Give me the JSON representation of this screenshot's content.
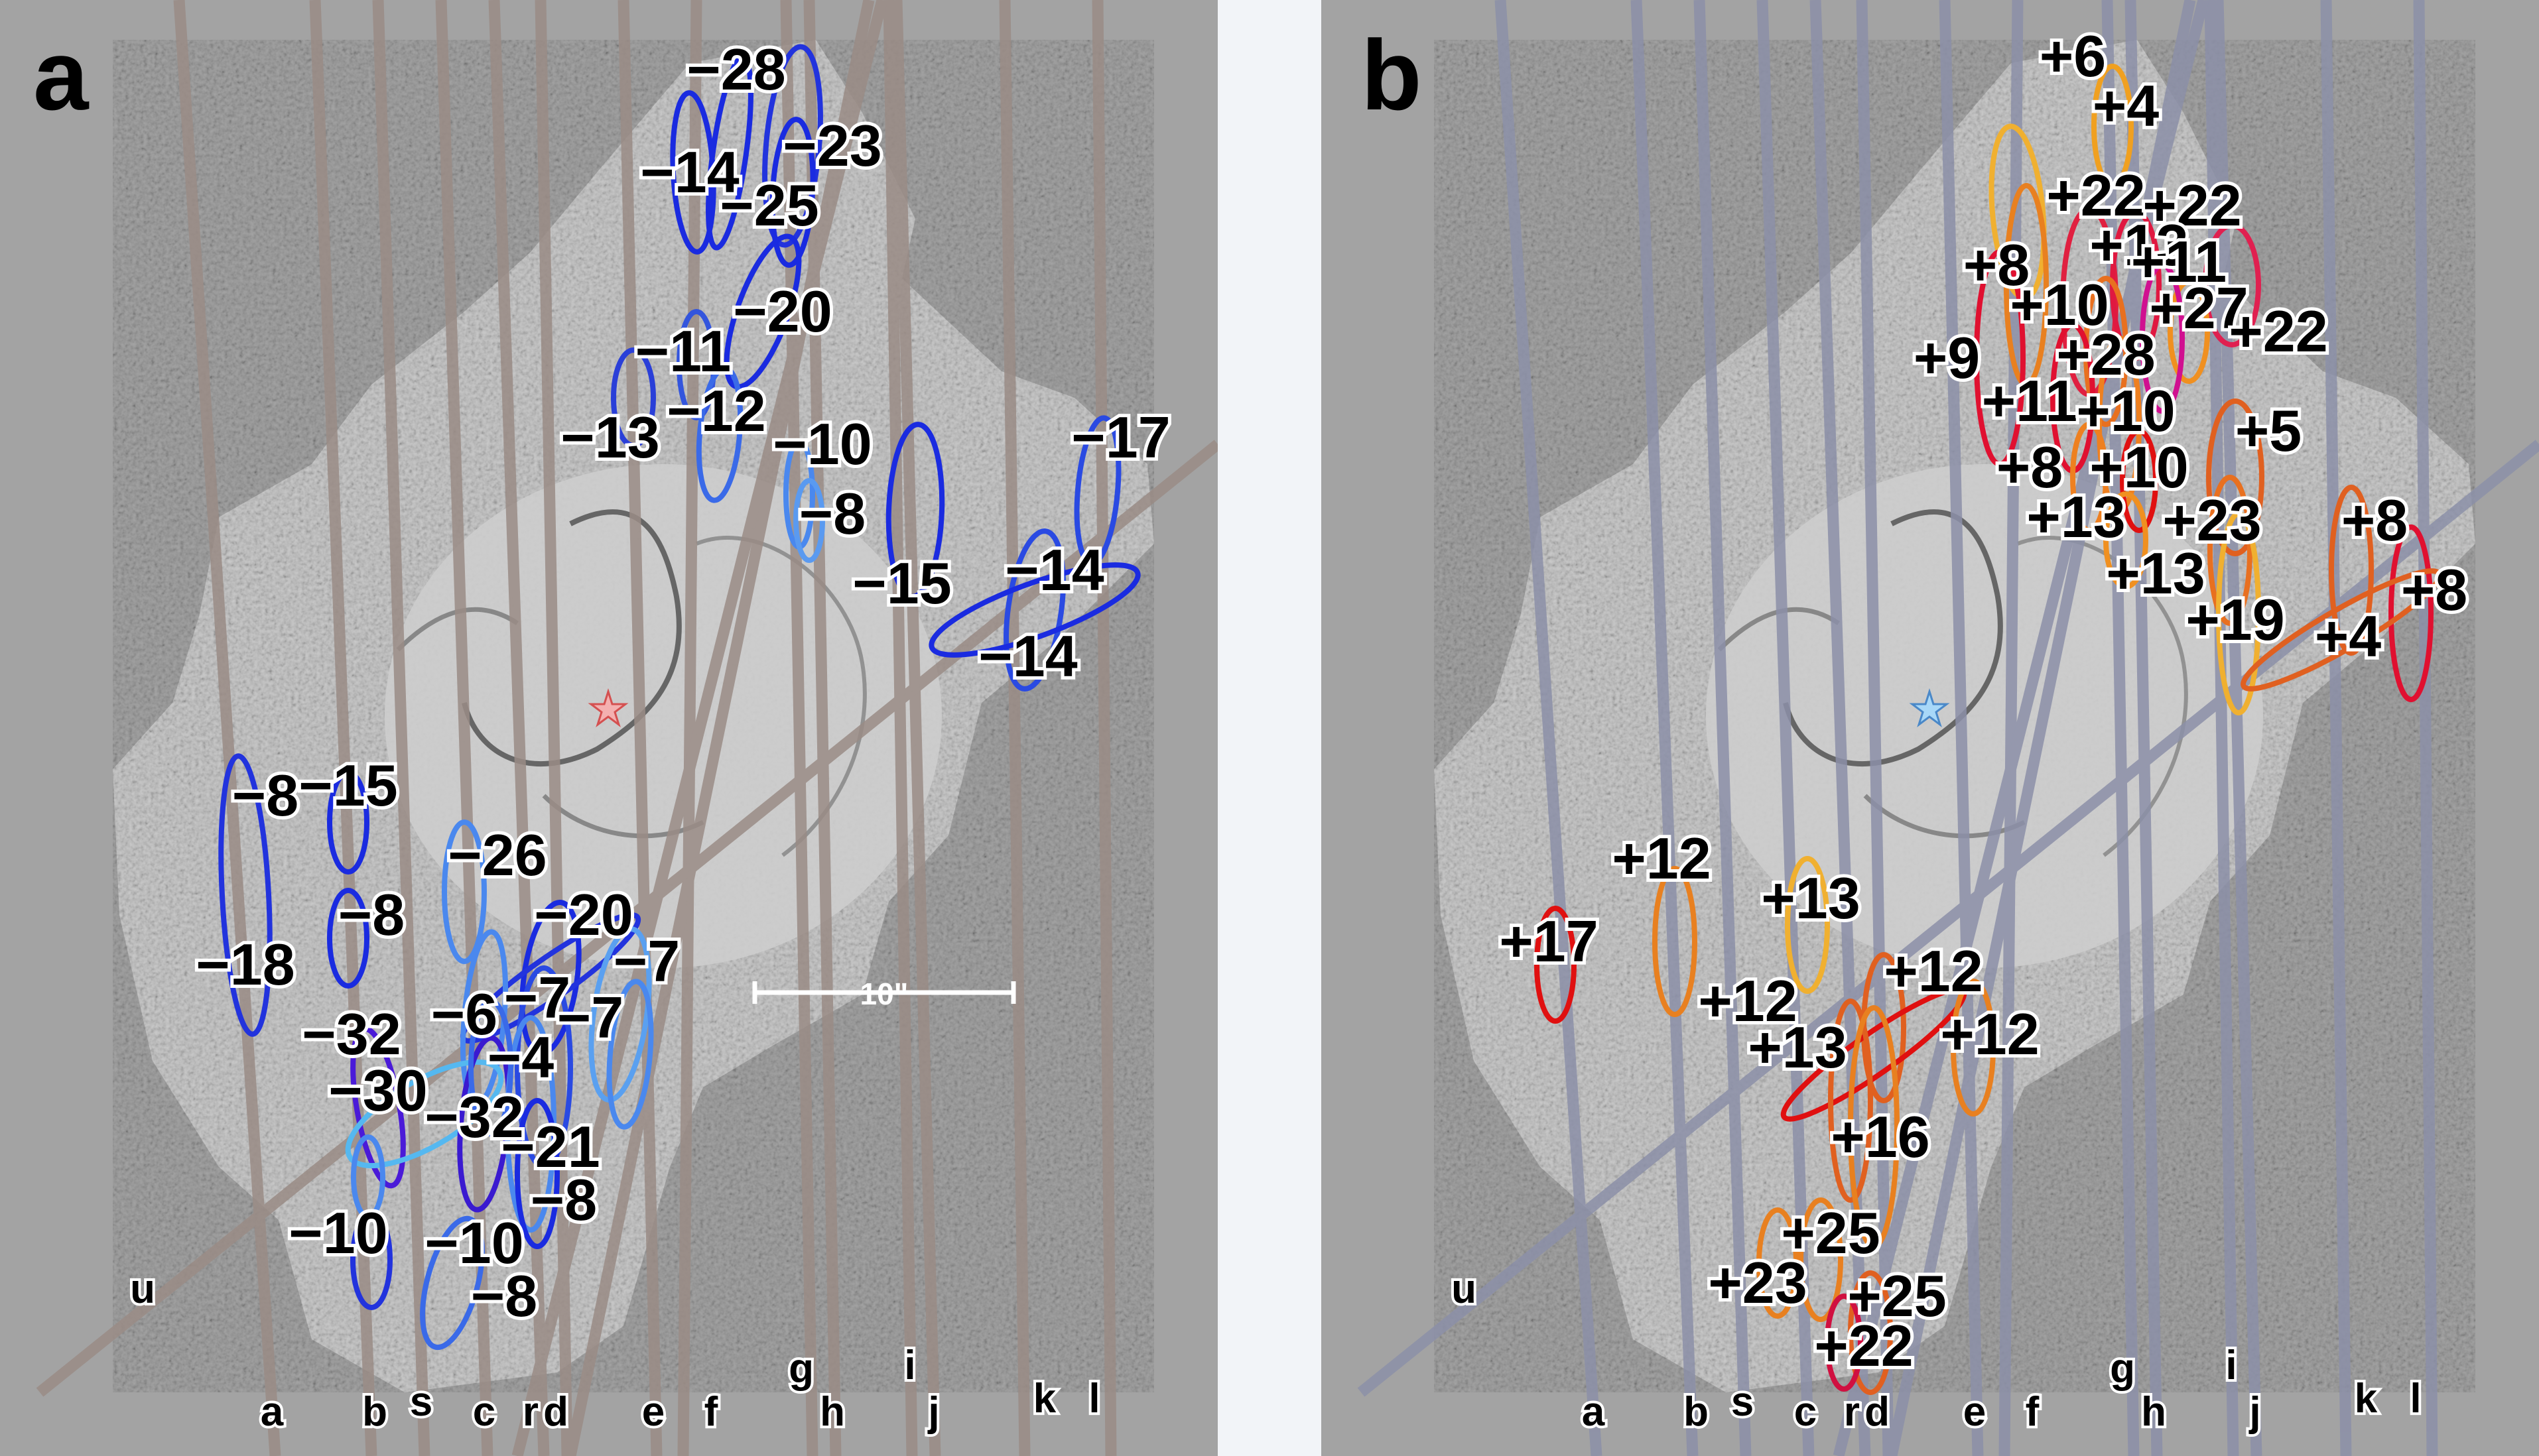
{
  "figure": {
    "panels": [
      {
        "label": "a",
        "slit_color": "#9a8c86",
        "star_color": "#e88a8a",
        "scale_bar": "10\"",
        "slit_labels": [
          "a",
          "b",
          "s",
          "c",
          "r",
          "d",
          "e",
          "f",
          "g",
          "h",
          "i",
          "j",
          "k",
          "l",
          "u"
        ],
        "velocities": [
          {
            "text": "−28",
            "color": "#1a2be0"
          },
          {
            "text": "−23",
            "color": "#1a2be0"
          },
          {
            "text": "−14",
            "color": "#2233dd"
          },
          {
            "text": "−25",
            "color": "#1a2be0"
          },
          {
            "text": "−20",
            "color": "#1a2be0"
          },
          {
            "text": "−11",
            "color": "#3355dd"
          },
          {
            "text": "−12",
            "color": "#3a6ae8"
          },
          {
            "text": "−13",
            "color": "#2a3fd8"
          },
          {
            "text": "−10",
            "color": "#4a88ee"
          },
          {
            "text": "−8",
            "color": "#5a9af0"
          },
          {
            "text": "−17",
            "color": "#1a2be0"
          },
          {
            "text": "−15",
            "color": "#2a4ae2"
          },
          {
            "text": "−14",
            "color": "#2a4ae2"
          },
          {
            "text": "−14",
            "color": "#1a2be0"
          },
          {
            "text": "−8",
            "color": "#2233dd"
          },
          {
            "text": "−15",
            "color": "#1a2be0"
          },
          {
            "text": "−26",
            "color": "#1a2be0"
          },
          {
            "text": "−8",
            "color": "#4a88ee"
          },
          {
            "text": "−20",
            "color": "#1a2be0"
          },
          {
            "text": "−18",
            "color": "#2233dd"
          },
          {
            "text": "−7",
            "color": "#5aa0f0"
          },
          {
            "text": "−6",
            "color": "#4a88ee"
          },
          {
            "text": "−7",
            "color": "#2a4ae2"
          },
          {
            "text": "−7",
            "color": "#4a88ee"
          },
          {
            "text": "−32",
            "color": "#4a1ad8"
          },
          {
            "text": "−4",
            "color": "#55b8f0"
          },
          {
            "text": "−30",
            "color": "#3a1ad0"
          },
          {
            "text": "−32",
            "color": "#4a88ee"
          },
          {
            "text": "−21",
            "color": "#1a2be0"
          },
          {
            "text": "−8",
            "color": "#2233dd"
          },
          {
            "text": "−10",
            "color": "#3a6ae8"
          },
          {
            "text": "−10",
            "color": "#3a6ae8"
          },
          {
            "text": "−8",
            "color": "#4a88ee"
          }
        ]
      },
      {
        "label": "b",
        "slit_color": "#8c90a8",
        "star_color": "#9fd0f0",
        "slit_labels": [
          "a",
          "b",
          "s",
          "c",
          "r",
          "d",
          "e",
          "f",
          "g",
          "h",
          "i",
          "j",
          "k",
          "l",
          "u"
        ],
        "velocities": [
          {
            "text": "+6",
            "color": "#f0a020"
          },
          {
            "text": "+4",
            "color": "#f0b030"
          },
          {
            "text": "+22",
            "color": "#e88020"
          },
          {
            "text": "+22",
            "color": "#e02040"
          },
          {
            "text": "+13",
            "color": "#e01840"
          },
          {
            "text": "+11",
            "color": "#e02050"
          },
          {
            "text": "+8",
            "color": "#f09020"
          },
          {
            "text": "+10",
            "color": "#e87020"
          },
          {
            "text": "+27",
            "color": "#d01090"
          },
          {
            "text": "+22",
            "color": "#e01030"
          },
          {
            "text": "+9",
            "color": "#ee8020"
          },
          {
            "text": "+28",
            "color": "#e01030"
          },
          {
            "text": "+11",
            "color": "#e06020"
          },
          {
            "text": "+10",
            "color": "#ee8020"
          },
          {
            "text": "+5",
            "color": "#e01010"
          },
          {
            "text": "+8",
            "color": "#f09020"
          },
          {
            "text": "+10",
            "color": "#e87020"
          },
          {
            "text": "+13",
            "color": "#e06020"
          },
          {
            "text": "+23",
            "color": "#e01030"
          },
          {
            "text": "+8",
            "color": "#f0b030"
          },
          {
            "text": "+13",
            "color": "#e06020"
          },
          {
            "text": "+8",
            "color": "#e88020"
          },
          {
            "text": "+19",
            "color": "#e01010"
          },
          {
            "text": "+4",
            "color": "#f0b030"
          },
          {
            "text": "+12",
            "color": "#e06020"
          },
          {
            "text": "+17",
            "color": "#e01010"
          },
          {
            "text": "+13",
            "color": "#e88020"
          },
          {
            "text": "+12",
            "color": "#e06020"
          },
          {
            "text": "+12",
            "color": "#e88020"
          },
          {
            "text": "+12",
            "color": "#e88020"
          },
          {
            "text": "+13",
            "color": "#e88020"
          },
          {
            "text": "+16",
            "color": "#e06020"
          },
          {
            "text": "+25",
            "color": "#d01040"
          },
          {
            "text": "+23",
            "color": "#d01040"
          },
          {
            "text": "+25",
            "color": "#d01040"
          },
          {
            "text": "+22",
            "color": "#d01040"
          }
        ]
      }
    ]
  }
}
